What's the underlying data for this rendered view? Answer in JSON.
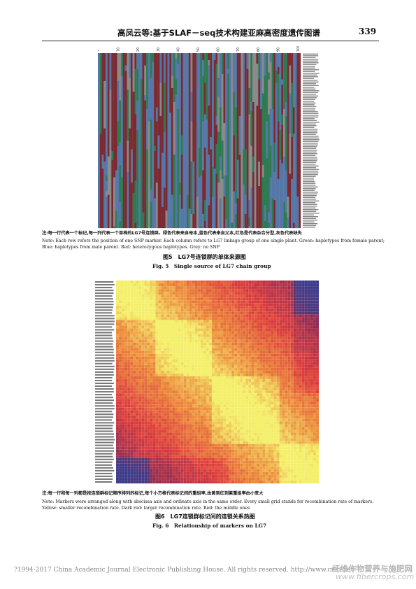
{
  "header": {
    "title": "高凤云等:基于SLAF－seq技术构建亚麻高密度遗传图谱",
    "page_number": "339"
  },
  "figure5": {
    "top_ticks": [
      "1",
      "10",
      "20",
      "30",
      "40",
      "50",
      "60",
      "70",
      "80",
      "90",
      "100"
    ],
    "row_count": 100,
    "col_count": 105,
    "colors": {
      "red": "#7a2a30",
      "green": "#2e7a52",
      "blue": "#5577a8",
      "grey": "#8a8a8a"
    },
    "note_cn": "注:每一行代表一个标记,每一列代表一个单株的LG7号连锁群。绿色代表来自母本,蓝色代表来自父本,红色是代表杂合分型,灰色代表缺失",
    "note_en_1": "Note: Each row refers the position of one SNP marker. Each column refers to LG7 linkage group of one single plant. Green: haplotypes from female parent;",
    "note_en_2": "Blue: haplotypes from male parent. Red: heterozygous haplotypes. Grey: no SNP",
    "title_cn": "图5　LG7号连锁群的单体来源图",
    "title_en": "Fig. 5　Single source of LG7 chain group"
  },
  "figure6": {
    "grid_size": 72,
    "colors": {
      "yellow": "#f4f06a",
      "orange": "#ec8a3a",
      "red": "#dd3c3c",
      "darkred": "#8a2b55",
      "purple": "#3c3a8a"
    },
    "note_cn": "注:每一行和每一列都是按连锁群标记顺序排列的标记,每个小方格代表标记间的重组率,由黄到红到紫重组率由小变大",
    "note_en_1": "Note: Markers were arranged along with abscissa axis and ordinate axis in the same order. Every small grid stands for recombination rate of markers.",
    "note_en_2": "Yellow: smaller recombination rate. Dark red: larger recombination rate. Red: the middle ones",
    "title_cn": "图6　LG7连锁群标记间的连锁关系热图",
    "title_en": "Fig. 6　Relationship of markers on LG7"
  },
  "footer": {
    "text": "?1994-2017 China Academic Journal Electronic Publishing House. All rights reserved.    http://www.cnki.net"
  },
  "watermark": {
    "line1": "纤维作物营养与施肥网",
    "line2": "www.fibercrops.com"
  }
}
